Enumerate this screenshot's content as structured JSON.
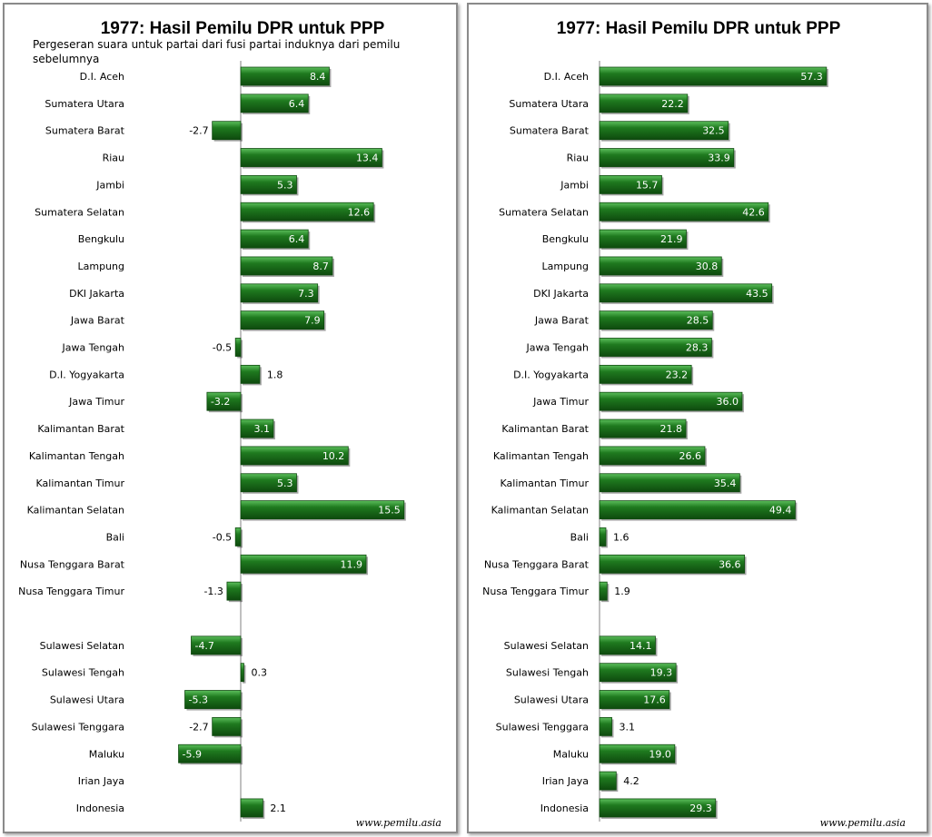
{
  "colors": {
    "bar_fill": "#1f7a1f",
    "bar_dark": "#0e4a0e",
    "bar_light": "#5cbf5c",
    "axis": "#808080",
    "label_inside": "#ffffff",
    "label_outside": "#000000"
  },
  "chart_data": [
    {
      "type": "bar",
      "orientation": "horizontal",
      "title": "1977: Hasil Pemilu DPR untuk PPP",
      "subtitle_lines": [
        "Pergeseran suara untuk partai dari fusi  partai induknya  dari pemilu",
        "sebelumnya"
      ],
      "source": "www.pemilu.asia",
      "xlim": [
        -7,
        19
      ],
      "categories": [
        "D.I. Aceh",
        "Sumatera Utara",
        "Sumatera Barat",
        "Riau",
        "Jambi",
        "Sumatera Selatan",
        "Bengkulu",
        "Lampung",
        "DKI Jakarta",
        "Jawa Barat",
        "Jawa Tengah",
        "D.I. Yogyakarta",
        "Jawa Timur",
        "Kalimantan Barat",
        "Kalimantan Tengah",
        "Kalimantan Timur",
        "Kalimantan Selatan",
        "Bali",
        "Nusa Tenggara Barat",
        "Nusa Tenggara Timur",
        "",
        "Sulawesi Selatan",
        "Sulawesi Tengah",
        "Sulawesi Utara",
        "Sulawesi Tenggara",
        "Maluku",
        "Irian Jaya",
        "Indonesia"
      ],
      "values": [
        8.4,
        6.4,
        -2.7,
        13.4,
        5.3,
        12.6,
        6.4,
        8.7,
        7.3,
        7.9,
        -0.5,
        1.8,
        -3.2,
        3.1,
        10.2,
        5.3,
        15.5,
        -0.5,
        11.9,
        -1.3,
        null,
        -4.7,
        0.3,
        -5.3,
        -2.7,
        -5.9,
        null,
        2.1
      ],
      "labels": [
        "8.4",
        "6.4",
        "-2.7",
        "13.4",
        "5.3",
        "12.6",
        "6.4",
        "8.7",
        "7.3",
        "7.9",
        "-0.5",
        "1.8",
        "-3.2",
        "3.1",
        "10.2",
        "5.3",
        "15.5",
        "-0.5",
        "11.9",
        "-1.3",
        "",
        "-4.7",
        "0.3",
        "-5.3",
        "-2.7",
        "-5.9",
        "",
        "2.1"
      ]
    },
    {
      "type": "bar",
      "orientation": "horizontal",
      "title": "1977: Hasil Pemilu DPR untuk PPP",
      "subtitle_lines": [],
      "source": "www.pemilu.asia",
      "xlim": [
        0,
        60
      ],
      "categories": [
        "D.I. Aceh",
        "Sumatera Utara",
        "Sumatera Barat",
        "Riau",
        "Jambi",
        "Sumatera Selatan",
        "Bengkulu",
        "Lampung",
        "DKI Jakarta",
        "Jawa Barat",
        "Jawa Tengah",
        "D.I. Yogyakarta",
        "Jawa Timur",
        "Kalimantan Barat",
        "Kalimantan Tengah",
        "Kalimantan Timur",
        "Kalimantan Selatan",
        "Bali",
        "Nusa Tenggara Barat",
        "Nusa Tenggara Timur",
        "",
        "Sulawesi Selatan",
        "Sulawesi Tengah",
        "Sulawesi Utara",
        "Sulawesi Tenggara",
        "Maluku",
        "Irian Jaya",
        "Indonesia"
      ],
      "values": [
        57.3,
        22.2,
        32.5,
        33.9,
        15.7,
        42.6,
        21.9,
        30.8,
        43.5,
        28.5,
        28.3,
        23.2,
        36.0,
        21.8,
        26.6,
        35.4,
        49.4,
        1.6,
        36.6,
        1.9,
        null,
        14.1,
        19.3,
        17.6,
        3.1,
        19.0,
        4.2,
        29.3
      ],
      "labels": [
        "57.3",
        "22.2",
        "32.5",
        "33.9",
        "15.7",
        "42.6",
        "21.9",
        "30.8",
        "43.5",
        "28.5",
        "28.3",
        "23.2",
        "36.0",
        "21.8",
        "26.6",
        "35.4",
        "49.4",
        "1.6",
        "36.6",
        "1.9",
        "",
        "14.1",
        "19.3",
        "17.6",
        "3.1",
        "19.0",
        "4.2",
        "29.3"
      ]
    }
  ]
}
